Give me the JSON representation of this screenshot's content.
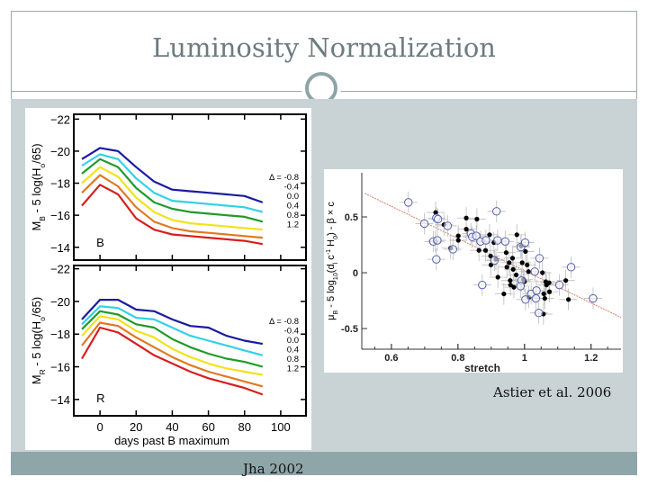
{
  "slide": {
    "title": "Luminosity Normalization",
    "left_credit": "Jha 2002",
    "right_credit": "Astier et al. 2006",
    "colors": {
      "title": "#6d7b80",
      "panel": "#c9d3d6",
      "footer": "#8fa6a9",
      "accent_circle": "#8ea5a8"
    }
  },
  "chart_data": [
    {
      "type": "line",
      "panel_label": "B",
      "xlabel": "",
      "ylabel": [
        {
          "t": "M"
        },
        {
          "t": "B",
          "sub": true
        },
        {
          "t": " - 5 log(H"
        },
        {
          "t": "o",
          "sub": true
        },
        {
          "t": "/65)"
        }
      ],
      "xlim": [
        -14.5,
        114
      ],
      "ylim": [
        -22.3,
        -13.2
      ],
      "y_inverted": true,
      "xticks": [],
      "yticks": [
        -22,
        -20,
        -18,
        -16,
        -14
      ],
      "x": [
        -10,
        0,
        10,
        20,
        30,
        40,
        50,
        60,
        70,
        80,
        90
      ],
      "legend_prefix": "Δ = ",
      "series": [
        {
          "name": "-0.8",
          "color": "#1a1aa0",
          "values": [
            -19.5,
            -20.2,
            -20.0,
            -19.0,
            -18.1,
            -17.6,
            -17.5,
            -17.4,
            -17.3,
            -17.2,
            -16.8
          ]
        },
        {
          "name": "-0.4",
          "color": "#33d0e8",
          "values": [
            -19.1,
            -19.8,
            -19.5,
            -18.3,
            -17.4,
            -16.9,
            -16.8,
            -16.7,
            -16.6,
            -16.5,
            -16.2
          ]
        },
        {
          "name": "0.0",
          "color": "#1f9a2a",
          "values": [
            -18.6,
            -19.5,
            -19.0,
            -17.7,
            -16.8,
            -16.4,
            -16.2,
            -16.1,
            -16.0,
            -15.9,
            -15.6
          ]
        },
        {
          "name": "0.4",
          "color": "#f2e21a",
          "values": [
            -18.0,
            -19.0,
            -18.4,
            -17.1,
            -16.2,
            -15.7,
            -15.5,
            -15.4,
            -15.3,
            -15.2,
            -15.1
          ]
        },
        {
          "name": "0.8",
          "color": "#e07a20",
          "values": [
            -17.4,
            -18.5,
            -17.8,
            -16.5,
            -15.6,
            -15.2,
            -15.0,
            -14.9,
            -14.8,
            -14.7,
            -14.6
          ]
        },
        {
          "name": "1.2",
          "color": "#d81e1e",
          "values": [
            -16.6,
            -17.9,
            -17.3,
            -15.8,
            -15.1,
            -14.8,
            -14.7,
            -14.6,
            -14.5,
            -14.4,
            -14.2
          ]
        }
      ]
    },
    {
      "type": "line",
      "panel_label": "R",
      "xlabel": "days past B maximum",
      "ylabel": [
        {
          "t": "M"
        },
        {
          "t": "R",
          "sub": true
        },
        {
          "t": " - 5 log(H"
        },
        {
          "t": "o",
          "sub": true
        },
        {
          "t": "/65)"
        }
      ],
      "xlim": [
        -14.5,
        114
      ],
      "ylim": [
        -22.2,
        -13.0
      ],
      "y_inverted": true,
      "xticks": [
        0,
        20,
        40,
        60,
        80,
        100
      ],
      "yticks": [
        -22,
        -20,
        -18,
        -16,
        -14
      ],
      "x": [
        -10,
        0,
        10,
        20,
        30,
        40,
        50,
        60,
        70,
        80,
        90
      ],
      "legend_prefix": "Δ = ",
      "series": [
        {
          "name": "-0.8",
          "color": "#1a1aa0",
          "values": [
            -18.9,
            -20.1,
            -20.1,
            -19.5,
            -19.4,
            -18.9,
            -18.5,
            -18.4,
            -17.9,
            -17.6,
            -17.4
          ]
        },
        {
          "name": "-0.4",
          "color": "#33d0e8",
          "values": [
            -18.6,
            -19.7,
            -19.6,
            -19.0,
            -18.9,
            -18.4,
            -17.9,
            -17.6,
            -17.3,
            -17.0,
            -16.7
          ]
        },
        {
          "name": "0.0",
          "color": "#1f9a2a",
          "values": [
            -18.3,
            -19.4,
            -19.2,
            -18.6,
            -18.4,
            -17.7,
            -17.2,
            -16.8,
            -16.5,
            -16.3,
            -16.0
          ]
        },
        {
          "name": "0.4",
          "color": "#f2e21a",
          "values": [
            -17.9,
            -19.1,
            -18.9,
            -18.2,
            -17.8,
            -17.1,
            -16.6,
            -16.2,
            -15.9,
            -15.7,
            -15.5
          ]
        },
        {
          "name": "0.8",
          "color": "#e07a20",
          "values": [
            -17.3,
            -18.7,
            -18.5,
            -17.8,
            -17.2,
            -16.6,
            -16.1,
            -15.7,
            -15.4,
            -15.1,
            -14.8
          ]
        },
        {
          "name": "1.2",
          "color": "#d81e1e",
          "values": [
            -16.5,
            -18.4,
            -18.1,
            -17.4,
            -16.7,
            -16.2,
            -15.7,
            -15.3,
            -15.0,
            -14.7,
            -14.3
          ]
        }
      ]
    },
    {
      "type": "scatter",
      "xlabel": "stretch",
      "ylabel": [
        {
          "t": "μ"
        },
        {
          "t": "B",
          "sub": true
        },
        {
          "t": " - 5 log"
        },
        {
          "t": "10",
          "sub": true
        },
        {
          "t": "(d"
        },
        {
          "t": "l",
          "sub": true
        },
        {
          "t": " c"
        },
        {
          "t": "-1",
          "sup": true
        },
        {
          "t": " H"
        },
        {
          "t": "0",
          "sub": true
        },
        {
          "t": ") - β × c"
        }
      ],
      "xlim": [
        0.511,
        1.29
      ],
      "ylim": [
        -0.685,
        0.895
      ],
      "xticks": [
        0.6,
        0.8,
        1,
        1.2
      ],
      "yticks": [
        0.5,
        0,
        -0.5
      ],
      "fit_line": {
        "x": [
          0.52,
          1.29
        ],
        "y": [
          0.71,
          -0.4
        ],
        "color": "#d9806a"
      },
      "series": [
        {
          "marker": "filled-circle",
          "color": "#000000",
          "points": [
            [
              0.733,
              0.54
            ],
            [
              0.732,
              0.28
            ],
            [
              0.758,
              0.43
            ],
            [
              0.778,
              0.22
            ],
            [
              0.801,
              0.33
            ],
            [
              0.801,
              0.29
            ],
            [
              0.825,
              0.49
            ],
            [
              0.825,
              0.39
            ],
            [
              0.857,
              0.48
            ],
            [
              0.863,
              0.2
            ],
            [
              0.883,
              0.2
            ],
            [
              0.895,
              0.34
            ],
            [
              0.898,
              0.15
            ],
            [
              0.899,
              0.07
            ],
            [
              0.908,
              0.27
            ],
            [
              0.914,
              0.12
            ],
            [
              0.92,
              -0.04
            ],
            [
              0.938,
              -0.19
            ],
            [
              0.945,
              0.18
            ],
            [
              0.947,
              0.05
            ],
            [
              0.954,
              0.09
            ],
            [
              0.957,
              -0.07
            ],
            [
              0.958,
              -0.11
            ],
            [
              0.964,
              0.13
            ],
            [
              0.966,
              0.03
            ],
            [
              0.968,
              -0.13
            ],
            [
              0.975,
              -0.02
            ],
            [
              0.977,
              0.34
            ],
            [
              0.99,
              0.24
            ],
            [
              0.993,
              0.09
            ],
            [
              0.997,
              -0.06
            ],
            [
              1.0,
              -0.08
            ],
            [
              1.003,
              0.19
            ],
            [
              1.008,
              0.07
            ],
            [
              1.012,
              0.01
            ],
            [
              1.013,
              -0.22
            ],
            [
              1.054,
              0.0
            ],
            [
              1.058,
              -0.19
            ],
            [
              1.061,
              -0.23
            ],
            [
              1.057,
              -0.37
            ],
            [
              1.064,
              -0.08
            ],
            [
              1.066,
              -0.11
            ],
            [
              1.074,
              -0.09
            ],
            [
              1.075,
              -0.17
            ],
            [
              1.124,
              -0.07
            ],
            [
              1.132,
              -0.24
            ]
          ]
        },
        {
          "marker": "open-circle",
          "color": "#5560b0",
          "points": [
            [
              0.651,
              0.63
            ],
            [
              0.699,
              0.44
            ],
            [
              0.735,
              0.49
            ],
            [
              0.74,
              0.48
            ],
            [
              0.726,
              0.28
            ],
            [
              0.735,
              0.12
            ],
            [
              0.738,
              0.29
            ],
            [
              0.769,
              0.42
            ],
            [
              0.785,
              0.21
            ],
            [
              0.839,
              0.35
            ],
            [
              0.843,
              0.32
            ],
            [
              0.855,
              0.33
            ],
            [
              0.868,
              0.28
            ],
            [
              0.873,
              -0.11
            ],
            [
              0.884,
              0.29
            ],
            [
              0.916,
              0.55
            ],
            [
              0.919,
              0.29
            ],
            [
              0.91,
              0.11
            ],
            [
              0.942,
              0.28
            ],
            [
              0.989,
              0.23
            ],
            [
              1.002,
              0.27
            ],
            [
              0.991,
              -0.07
            ],
            [
              0.988,
              -0.12
            ],
            [
              1.003,
              -0.24
            ],
            [
              1.02,
              -0.19
            ],
            [
              1.031,
              0.01
            ],
            [
              1.036,
              -0.16
            ],
            [
              1.034,
              -0.23
            ],
            [
              1.043,
              -0.36
            ],
            [
              1.045,
              0.13
            ],
            [
              1.105,
              -0.11
            ],
            [
              1.14,
              0.05
            ],
            [
              1.206,
              -0.23
            ]
          ]
        }
      ]
    }
  ]
}
